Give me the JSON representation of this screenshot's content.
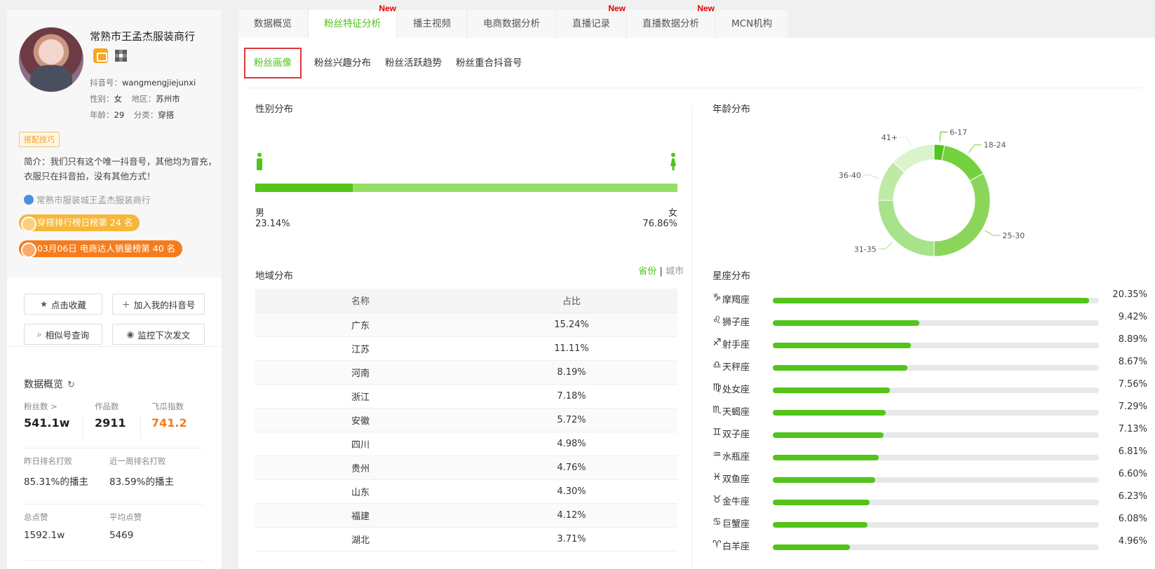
{
  "profile": {
    "name": "常熟市王孟杰服装商行",
    "douyin_label": "抖音号：",
    "douyin_id": "wangmengjiejunxi",
    "gender_label": "性别：",
    "gender": "女",
    "region_label": "地区：",
    "region": "苏州市",
    "age_label": "年龄：",
    "age": "29",
    "category_label": "分类：",
    "category": "穿搭",
    "tag": "搭配技巧",
    "intro": "简介：我们只有这个唯一抖音号，其他均为冒充，衣服只在抖音拍，没有其他方式！",
    "verified": "常熟市服装城王孟杰服装商行",
    "rank_daily": "穿搭排行榜日榜第 24 名",
    "rank_sales": "03月06日 电商达人销量榜第 40 名"
  },
  "actions": {
    "favorite": "点击收藏",
    "add": "加入我的抖音号",
    "similar": "相似号查询",
    "monitor": "监控下次发文"
  },
  "overview": {
    "title": "数据概览",
    "fans_label": "粉丝数 >",
    "fans": "541.1w",
    "works_label": "作品数",
    "works": "2911",
    "index_label": "飞瓜指数",
    "index": "741.2",
    "yesterday_label": "昨日排名打败",
    "yesterday": "85.31%的播主",
    "week_label": "近一周排名打败",
    "week": "83.59%的播主",
    "likes_label": "总点赞",
    "likes": "1592.1w",
    "avg_label": "平均点赞",
    "avg": "5469"
  },
  "tabs": [
    {
      "label": "数据概览",
      "new": ""
    },
    {
      "label": "粉丝特征分析",
      "new": "New"
    },
    {
      "label": "播主视频",
      "new": ""
    },
    {
      "label": "电商数据分析",
      "new": ""
    },
    {
      "label": "直播记录",
      "new": "New"
    },
    {
      "label": "直播数据分析",
      "new": "New"
    },
    {
      "label": "MCN机构",
      "new": ""
    }
  ],
  "subtabs": [
    "粉丝画像",
    "粉丝兴趣分布",
    "粉丝活跃趋势",
    "粉丝重合抖音号"
  ],
  "gender": {
    "title": "性别分布",
    "male_label": "男",
    "male_pct": "23.14%",
    "male_value": 23.14,
    "female_label": "女",
    "female_pct": "76.86%"
  },
  "region": {
    "title": "地域分布",
    "switch_province": "省份",
    "switch_sep": "|",
    "switch_city": "城市",
    "col_name": "名称",
    "col_pct": "占比",
    "rows": [
      {
        "name": "广东",
        "pct": "15.24%"
      },
      {
        "name": "江苏",
        "pct": "11.11%"
      },
      {
        "name": "河南",
        "pct": "8.19%"
      },
      {
        "name": "浙江",
        "pct": "7.18%"
      },
      {
        "name": "安徽",
        "pct": "5.72%"
      },
      {
        "name": "四川",
        "pct": "4.98%"
      },
      {
        "name": "贵州",
        "pct": "4.76%"
      },
      {
        "name": "山东",
        "pct": "4.30%"
      },
      {
        "name": "福建",
        "pct": "4.12%"
      },
      {
        "name": "湖北",
        "pct": "3.71%"
      }
    ]
  },
  "age_title": "年龄分布",
  "zodiac": {
    "title": "星座分布",
    "items": [
      {
        "icon": "♑",
        "name": "摩羯座",
        "pct": "20.35%",
        "value": 20.35
      },
      {
        "icon": "♌",
        "name": "狮子座",
        "pct": "9.42%",
        "value": 9.42
      },
      {
        "icon": "♐",
        "name": "射手座",
        "pct": "8.89%",
        "value": 8.89
      },
      {
        "icon": "♎",
        "name": "天秤座",
        "pct": "8.67%",
        "value": 8.67
      },
      {
        "icon": "♍",
        "name": "处女座",
        "pct": "7.56%",
        "value": 7.56
      },
      {
        "icon": "♏",
        "name": "天蝎座",
        "pct": "7.29%",
        "value": 7.29
      },
      {
        "icon": "♊",
        "name": "双子座",
        "pct": "7.13%",
        "value": 7.13
      },
      {
        "icon": "♒",
        "name": "水瓶座",
        "pct": "6.81%",
        "value": 6.81
      },
      {
        "icon": "♓",
        "name": "双鱼座",
        "pct": "6.60%",
        "value": 6.6
      },
      {
        "icon": "♉",
        "name": "金牛座",
        "pct": "6.23%",
        "value": 6.23
      },
      {
        "icon": "♋",
        "name": "巨蟹座",
        "pct": "6.08%",
        "value": 6.08
      },
      {
        "icon": "♈",
        "name": "白羊座",
        "pct": "4.96%",
        "value": 4.96
      }
    ]
  },
  "chart_data": {
    "type": "pie",
    "donut": true,
    "categories": [
      "6-17",
      "18-24",
      "25-30",
      "31-35",
      "36-40",
      "41+"
    ],
    "values": [
      3,
      14,
      33,
      25,
      12,
      13
    ],
    "colors": [
      "#52c41a",
      "#73d13d",
      "#8bd65a",
      "#a6e38a",
      "#bfeaa6",
      "#dcf4cc"
    ]
  }
}
